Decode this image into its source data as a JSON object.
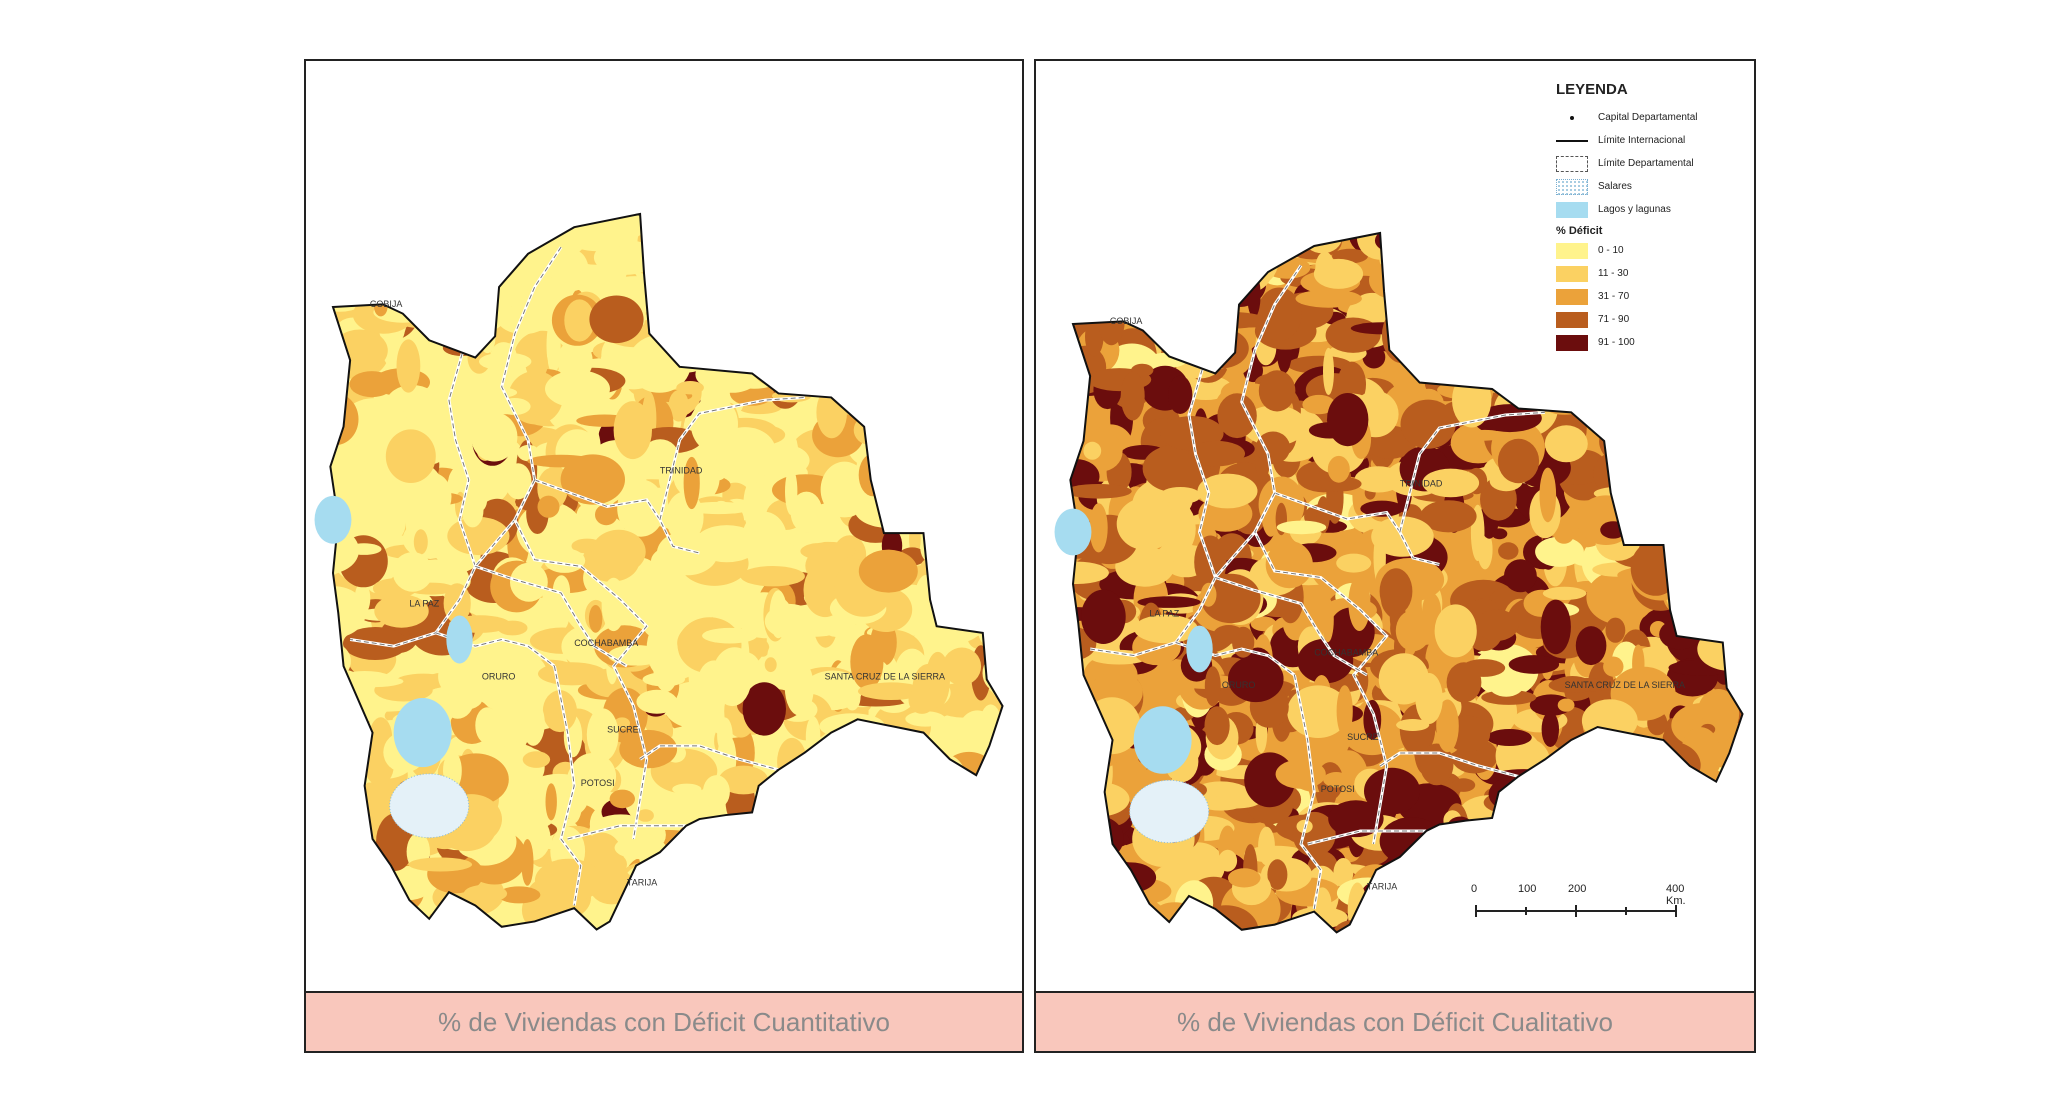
{
  "panels": [
    {
      "caption": "% de Viviendas con Déficit Cuantitativo",
      "cities": [
        "COBIJA",
        "TRINIDAD",
        "LA PAZ",
        "COCHABAMBA",
        "SANTA CRUZ DE LA SIERRA",
        "ORURO",
        "SUCRE",
        "POTOSI",
        "TARIJA"
      ]
    },
    {
      "caption": "% de Viviendas con Déficit Cualitativo",
      "cities": [
        "COBIJA",
        "TRINIDAD",
        "LA PAZ",
        "COCHABAMBA",
        "SANTA CRUZ DE LA SIERRA",
        "ORURO",
        "SUCRE",
        "POTOSI",
        "TARIJA"
      ]
    }
  ],
  "legend": {
    "title": "LEYENDA",
    "symbols": [
      {
        "label": "Capital Departamental",
        "icon": "dot-icon"
      },
      {
        "label": "Límite Internacional",
        "icon": "solid-line-icon"
      },
      {
        "label": "Límite Departamental",
        "icon": "dashed-box-icon"
      },
      {
        "label": "Salares",
        "icon": "dotted-box-icon"
      },
      {
        "label": "Lagos y lagunas",
        "icon": "lake-swatch-icon",
        "color": "#a6dcf0"
      }
    ],
    "deficit_title": "% Déficit",
    "classes": [
      {
        "label": "0 - 10",
        "color": "#fff38c"
      },
      {
        "label": "11 - 30",
        "color": "#fbd162"
      },
      {
        "label": "31 - 70",
        "color": "#eba23a"
      },
      {
        "label": "71 - 90",
        "color": "#b95d1e"
      },
      {
        "label": "91 - 100",
        "color": "#6b0d0d"
      }
    ]
  },
  "scale": {
    "labels": [
      "0",
      "100",
      "200",
      "400 Km."
    ]
  },
  "colors": {
    "lake": "#a6dcf0",
    "caption_bg": "#f9c7bc"
  }
}
